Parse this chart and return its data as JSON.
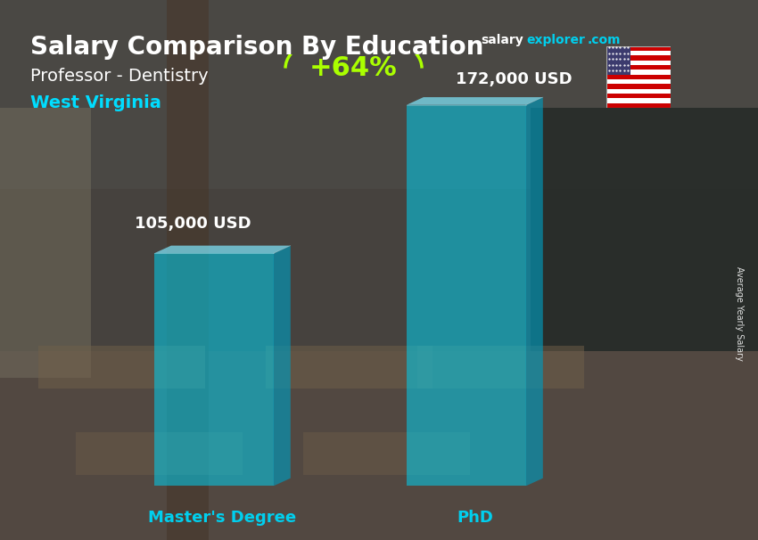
{
  "title_main": "Salary Comparison By Education",
  "subtitle": "Professor - Dentistry",
  "location": "West Virginia",
  "categories": [
    "Master's Degree",
    "PhD"
  ],
  "values": [
    105000,
    172000
  ],
  "value_labels": [
    "105,000 USD",
    "172,000 USD"
  ],
  "percent_label": "+64%",
  "bar_color_front": "#00CFEE",
  "bar_color_side": "#0099BB",
  "bar_color_top": "#80E8FF",
  "bar_alpha": 0.55,
  "title_color": "#FFFFFF",
  "subtitle_color": "#FFFFFF",
  "location_color": "#00DDFF",
  "value_label_color": "#FFFFFF",
  "percent_color": "#AAFF00",
  "axis_label_color": "#00CFEE",
  "salary_text_color": "#FFFFFF",
  "explorer_text_color": "#00CFEE",
  "ylabel_text": "Average Yearly Salary",
  "bg_color": "#5a6a70"
}
